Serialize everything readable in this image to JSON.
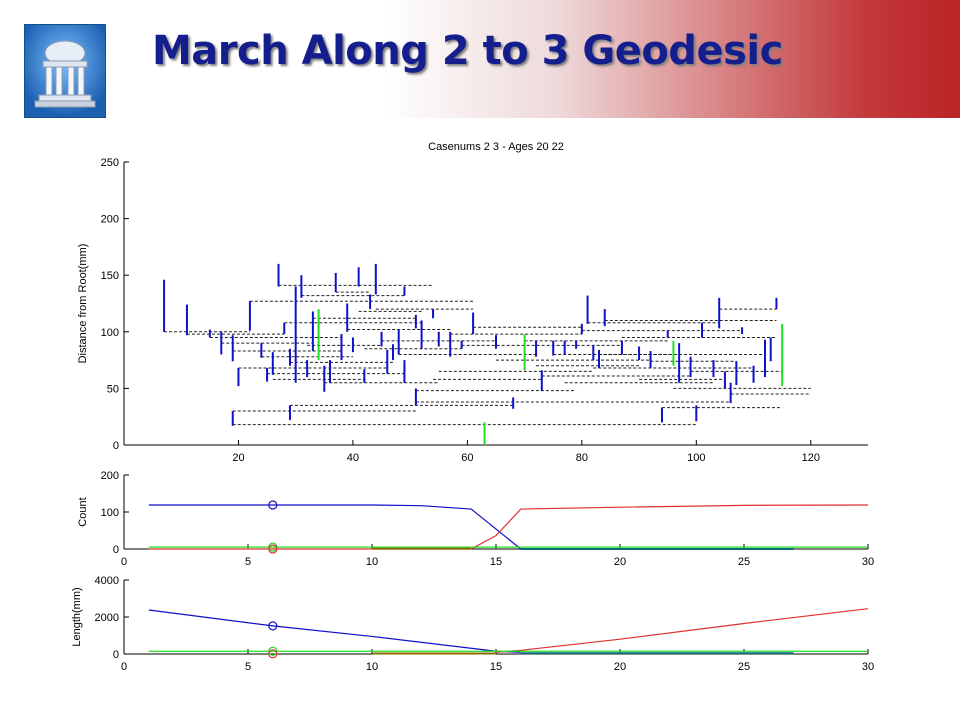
{
  "slide": {
    "title": "March Along 2 to 3 Geodesic",
    "logo_icon": "dome-column-building-icon"
  },
  "colors": {
    "blue": "#1010c8",
    "red": "#e03030",
    "green": "#22dd22",
    "teal": "#0a6a7a",
    "olive": "#8a6a00",
    "dashes": "#222222"
  },
  "chart_data": [
    {
      "type": "tree-plot",
      "title": "Casenums 2 3 - Ages 20 22",
      "xlabel": "",
      "ylabel": "Distance from Root(mm)",
      "xlim": [
        0,
        130
      ],
      "ylim": [
        0,
        250
      ],
      "xticks": [
        20,
        40,
        60,
        80,
        100,
        120
      ],
      "yticks": [
        0,
        50,
        100,
        150,
        200,
        250
      ],
      "legend": "none",
      "grid": false,
      "vertical_segments": [
        {
          "x": 7,
          "y0": 100,
          "y1": 146,
          "color": "blue"
        },
        {
          "x": 11,
          "y0": 97,
          "y1": 124,
          "color": "blue"
        },
        {
          "x": 15,
          "y0": 95,
          "y1": 102,
          "color": "blue"
        },
        {
          "x": 17,
          "y0": 80,
          "y1": 100,
          "color": "blue"
        },
        {
          "x": 19,
          "y0": 17,
          "y1": 30,
          "color": "blue"
        },
        {
          "x": 19,
          "y0": 74,
          "y1": 97,
          "color": "blue"
        },
        {
          "x": 20,
          "y0": 52,
          "y1": 68,
          "color": "blue"
        },
        {
          "x": 22,
          "y0": 101,
          "y1": 127,
          "color": "blue"
        },
        {
          "x": 24,
          "y0": 77,
          "y1": 90,
          "color": "blue"
        },
        {
          "x": 25,
          "y0": 56,
          "y1": 68,
          "color": "blue"
        },
        {
          "x": 26,
          "y0": 62,
          "y1": 82,
          "color": "blue"
        },
        {
          "x": 27,
          "y0": 140,
          "y1": 160,
          "color": "blue"
        },
        {
          "x": 28,
          "y0": 98,
          "y1": 108,
          "color": "blue"
        },
        {
          "x": 29,
          "y0": 22,
          "y1": 35,
          "color": "blue"
        },
        {
          "x": 29,
          "y0": 70,
          "y1": 85,
          "color": "blue"
        },
        {
          "x": 30,
          "y0": 55,
          "y1": 140,
          "color": "blue"
        },
        {
          "x": 31,
          "y0": 130,
          "y1": 150,
          "color": "blue"
        },
        {
          "x": 32,
          "y0": 60,
          "y1": 75,
          "color": "blue"
        },
        {
          "x": 33,
          "y0": 83,
          "y1": 118,
          "color": "blue"
        },
        {
          "x": 34,
          "y0": 75,
          "y1": 120,
          "color": "green"
        },
        {
          "x": 35,
          "y0": 47,
          "y1": 70,
          "color": "blue"
        },
        {
          "x": 36,
          "y0": 55,
          "y1": 75,
          "color": "blue"
        },
        {
          "x": 37,
          "y0": 135,
          "y1": 152,
          "color": "blue"
        },
        {
          "x": 38,
          "y0": 75,
          "y1": 98,
          "color": "blue"
        },
        {
          "x": 39,
          "y0": 100,
          "y1": 125,
          "color": "blue"
        },
        {
          "x": 40,
          "y0": 82,
          "y1": 95,
          "color": "blue"
        },
        {
          "x": 41,
          "y0": 140,
          "y1": 157,
          "color": "blue"
        },
        {
          "x": 42,
          "y0": 55,
          "y1": 67,
          "color": "blue"
        },
        {
          "x": 43,
          "y0": 120,
          "y1": 133,
          "color": "blue"
        },
        {
          "x": 44,
          "y0": 133,
          "y1": 160,
          "color": "blue"
        },
        {
          "x": 45,
          "y0": 87,
          "y1": 100,
          "color": "blue"
        },
        {
          "x": 46,
          "y0": 63,
          "y1": 84,
          "color": "blue"
        },
        {
          "x": 47,
          "y0": 75,
          "y1": 89,
          "color": "blue"
        },
        {
          "x": 48,
          "y0": 80,
          "y1": 102,
          "color": "blue"
        },
        {
          "x": 49,
          "y0": 132,
          "y1": 140,
          "color": "blue"
        },
        {
          "x": 49,
          "y0": 55,
          "y1": 75,
          "color": "blue"
        },
        {
          "x": 51,
          "y0": 103,
          "y1": 115,
          "color": "blue"
        },
        {
          "x": 51,
          "y0": 35,
          "y1": 50,
          "color": "blue"
        },
        {
          "x": 52,
          "y0": 85,
          "y1": 110,
          "color": "blue"
        },
        {
          "x": 54,
          "y0": 112,
          "y1": 120,
          "color": "blue"
        },
        {
          "x": 55,
          "y0": 87,
          "y1": 100,
          "color": "blue"
        },
        {
          "x": 57,
          "y0": 78,
          "y1": 100,
          "color": "blue"
        },
        {
          "x": 59,
          "y0": 85,
          "y1": 92,
          "color": "blue"
        },
        {
          "x": 61,
          "y0": 98,
          "y1": 117,
          "color": "blue"
        },
        {
          "x": 63,
          "y0": 0,
          "y1": 20,
          "color": "green"
        },
        {
          "x": 65,
          "y0": 85,
          "y1": 97,
          "color": "blue"
        },
        {
          "x": 68,
          "y0": 32,
          "y1": 42,
          "color": "blue"
        },
        {
          "x": 70,
          "y0": 66,
          "y1": 98,
          "color": "green"
        },
        {
          "x": 72,
          "y0": 78,
          "y1": 92,
          "color": "blue"
        },
        {
          "x": 73,
          "y0": 48,
          "y1": 66,
          "color": "blue"
        },
        {
          "x": 75,
          "y0": 79,
          "y1": 92,
          "color": "blue"
        },
        {
          "x": 77,
          "y0": 80,
          "y1": 92,
          "color": "blue"
        },
        {
          "x": 79,
          "y0": 85,
          "y1": 92,
          "color": "blue"
        },
        {
          "x": 80,
          "y0": 98,
          "y1": 107,
          "color": "blue"
        },
        {
          "x": 81,
          "y0": 107,
          "y1": 132,
          "color": "blue"
        },
        {
          "x": 82,
          "y0": 75,
          "y1": 88,
          "color": "blue"
        },
        {
          "x": 83,
          "y0": 68,
          "y1": 84,
          "color": "blue"
        },
        {
          "x": 84,
          "y0": 105,
          "y1": 120,
          "color": "blue"
        },
        {
          "x": 87,
          "y0": 80,
          "y1": 92,
          "color": "blue"
        },
        {
          "x": 90,
          "y0": 75,
          "y1": 87,
          "color": "blue"
        },
        {
          "x": 92,
          "y0": 68,
          "y1": 83,
          "color": "blue"
        },
        {
          "x": 94,
          "y0": 20,
          "y1": 33,
          "color": "blue"
        },
        {
          "x": 95,
          "y0": 95,
          "y1": 101,
          "color": "blue"
        },
        {
          "x": 96,
          "y0": 70,
          "y1": 92,
          "color": "green"
        },
        {
          "x": 97,
          "y0": 55,
          "y1": 90,
          "color": "blue"
        },
        {
          "x": 99,
          "y0": 60,
          "y1": 78,
          "color": "blue"
        },
        {
          "x": 100,
          "y0": 21,
          "y1": 35,
          "color": "blue"
        },
        {
          "x": 101,
          "y0": 95,
          "y1": 108,
          "color": "blue"
        },
        {
          "x": 103,
          "y0": 60,
          "y1": 75,
          "color": "blue"
        },
        {
          "x": 104,
          "y0": 103,
          "y1": 130,
          "color": "blue"
        },
        {
          "x": 105,
          "y0": 50,
          "y1": 65,
          "color": "blue"
        },
        {
          "x": 106,
          "y0": 37,
          "y1": 55,
          "color": "blue"
        },
        {
          "x": 107,
          "y0": 53,
          "y1": 74,
          "color": "blue"
        },
        {
          "x": 108,
          "y0": 98,
          "y1": 104,
          "color": "blue"
        },
        {
          "x": 110,
          "y0": 55,
          "y1": 70,
          "color": "blue"
        },
        {
          "x": 112,
          "y0": 60,
          "y1": 93,
          "color": "blue"
        },
        {
          "x": 113,
          "y0": 74,
          "y1": 95,
          "color": "blue"
        },
        {
          "x": 114,
          "y0": 120,
          "y1": 130,
          "color": "blue"
        },
        {
          "x": 115,
          "y0": 52,
          "y1": 107,
          "color": "green"
        }
      ],
      "dashed_links": [
        {
          "x0": 7,
          "x1": 22,
          "y": 100
        },
        {
          "x0": 11,
          "x1": 28,
          "y": 98
        },
        {
          "x0": 15,
          "x1": 38,
          "y": 95
        },
        {
          "x0": 17,
          "x1": 33,
          "y": 90
        },
        {
          "x0": 19,
          "x1": 38,
          "y": 83
        },
        {
          "x0": 19,
          "x1": 51,
          "y": 30
        },
        {
          "x0": 19,
          "x1": 100,
          "y": 18
        },
        {
          "x0": 20,
          "x1": 46,
          "y": 68
        },
        {
          "x0": 22,
          "x1": 61,
          "y": 127
        },
        {
          "x0": 24,
          "x1": 40,
          "y": 78
        },
        {
          "x0": 25,
          "x1": 49,
          "y": 63
        },
        {
          "x0": 26,
          "x1": 42,
          "y": 58
        },
        {
          "x0": 27,
          "x1": 54,
          "y": 141
        },
        {
          "x0": 28,
          "x1": 52,
          "y": 108
        },
        {
          "x0": 29,
          "x1": 68,
          "y": 35
        },
        {
          "x0": 29,
          "x1": 47,
          "y": 73
        },
        {
          "x0": 31,
          "x1": 49,
          "y": 132
        },
        {
          "x0": 32,
          "x1": 45,
          "y": 88
        },
        {
          "x0": 33,
          "x1": 51,
          "y": 112
        },
        {
          "x0": 35,
          "x1": 55,
          "y": 55
        },
        {
          "x0": 37,
          "x1": 43,
          "y": 135
        },
        {
          "x0": 39,
          "x1": 57,
          "y": 102
        },
        {
          "x0": 41,
          "x1": 52,
          "y": 118
        },
        {
          "x0": 42,
          "x1": 59,
          "y": 85
        },
        {
          "x0": 44,
          "x1": 61,
          "y": 120
        },
        {
          "x0": 45,
          "x1": 65,
          "y": 92
        },
        {
          "x0": 48,
          "x1": 72,
          "y": 80
        },
        {
          "x0": 51,
          "x1": 106,
          "y": 38
        },
        {
          "x0": 51,
          "x1": 79,
          "y": 48
        },
        {
          "x0": 54,
          "x1": 73,
          "y": 58
        },
        {
          "x0": 55,
          "x1": 82,
          "y": 65
        },
        {
          "x0": 57,
          "x1": 80,
          "y": 98
        },
        {
          "x0": 59,
          "x1": 87,
          "y": 88
        },
        {
          "x0": 61,
          "x1": 80,
          "y": 104
        },
        {
          "x0": 65,
          "x1": 92,
          "y": 75
        },
        {
          "x0": 70,
          "x1": 95,
          "y": 92
        },
        {
          "x0": 72,
          "x1": 90,
          "y": 70
        },
        {
          "x0": 73,
          "x1": 99,
          "y": 61
        },
        {
          "x0": 75,
          "x1": 97,
          "y": 80
        },
        {
          "x0": 77,
          "x1": 103,
          "y": 55
        },
        {
          "x0": 80,
          "x1": 108,
          "y": 101
        },
        {
          "x0": 81,
          "x1": 104,
          "y": 108
        },
        {
          "x0": 82,
          "x1": 110,
          "y": 68
        },
        {
          "x0": 83,
          "x1": 112,
          "y": 80
        },
        {
          "x0": 84,
          "x1": 114,
          "y": 110
        },
        {
          "x0": 87,
          "x1": 113,
          "y": 95
        },
        {
          "x0": 90,
          "x1": 105,
          "y": 58
        },
        {
          "x0": 92,
          "x1": 107,
          "y": 74
        },
        {
          "x0": 94,
          "x1": 115,
          "y": 33
        },
        {
          "x0": 96,
          "x1": 120,
          "y": 50
        },
        {
          "x0": 99,
          "x1": 115,
          "y": 65
        },
        {
          "x0": 101,
          "x1": 114,
          "y": 95
        },
        {
          "x0": 104,
          "x1": 114,
          "y": 120
        },
        {
          "x0": 106,
          "x1": 120,
          "y": 45
        }
      ]
    },
    {
      "type": "line",
      "title": "",
      "xlabel": "",
      "ylabel": "Count",
      "xlim": [
        0,
        30
      ],
      "ylim": [
        0,
        200
      ],
      "xticks": [
        0,
        5,
        10,
        15,
        20,
        25,
        30
      ],
      "yticks": [
        0,
        100,
        200
      ],
      "marker_x": 6,
      "series": [
        {
          "color": "blue",
          "x": [
            1,
            6,
            10,
            12,
            14,
            16
          ],
          "y": [
            119,
            119,
            119,
            117,
            108,
            0
          ]
        },
        {
          "color": "red",
          "x": [
            1,
            14,
            15,
            16,
            20,
            25,
            30
          ],
          "y": [
            0,
            0,
            36,
            108,
            113,
            118,
            119
          ]
        },
        {
          "color": "green",
          "x": [
            1,
            30
          ],
          "y": [
            5,
            5
          ]
        },
        {
          "color": "teal",
          "x": [
            16,
            27
          ],
          "y": [
            0,
            0
          ]
        },
        {
          "color": "olive",
          "x": [
            10,
            14
          ],
          "y": [
            1,
            1
          ]
        }
      ],
      "markers": [
        {
          "x": 6,
          "y": 119,
          "color": "blue"
        },
        {
          "x": 6,
          "y": 5,
          "color": "green"
        },
        {
          "x": 6,
          "y": 0,
          "color": "red"
        }
      ]
    },
    {
      "type": "line",
      "title": "",
      "xlabel": "",
      "ylabel": "Length(mm)",
      "xlim": [
        0,
        30
      ],
      "ylim": [
        0,
        4000
      ],
      "xticks": [
        0,
        5,
        10,
        15,
        20,
        25,
        30
      ],
      "yticks": [
        0,
        2000,
        4000
      ],
      "marker_x": 6,
      "series": [
        {
          "color": "blue",
          "x": [
            1,
            6,
            10,
            15,
            16
          ],
          "y": [
            2380,
            1520,
            950,
            150,
            90
          ]
        },
        {
          "color": "red",
          "x": [
            15,
            16,
            20,
            25,
            30
          ],
          "y": [
            90,
            200,
            800,
            1650,
            2450
          ]
        },
        {
          "color": "green",
          "x": [
            1,
            30
          ],
          "y": [
            150,
            150
          ]
        },
        {
          "color": "teal",
          "x": [
            16,
            27
          ],
          "y": [
            40,
            40
          ]
        },
        {
          "color": "olive",
          "x": [
            10,
            15
          ],
          "y": [
            30,
            30
          ]
        }
      ],
      "markers": [
        {
          "x": 6,
          "y": 1520,
          "color": "blue"
        },
        {
          "x": 6,
          "y": 150,
          "color": "green"
        },
        {
          "x": 6,
          "y": 10,
          "color": "red"
        }
      ]
    }
  ]
}
